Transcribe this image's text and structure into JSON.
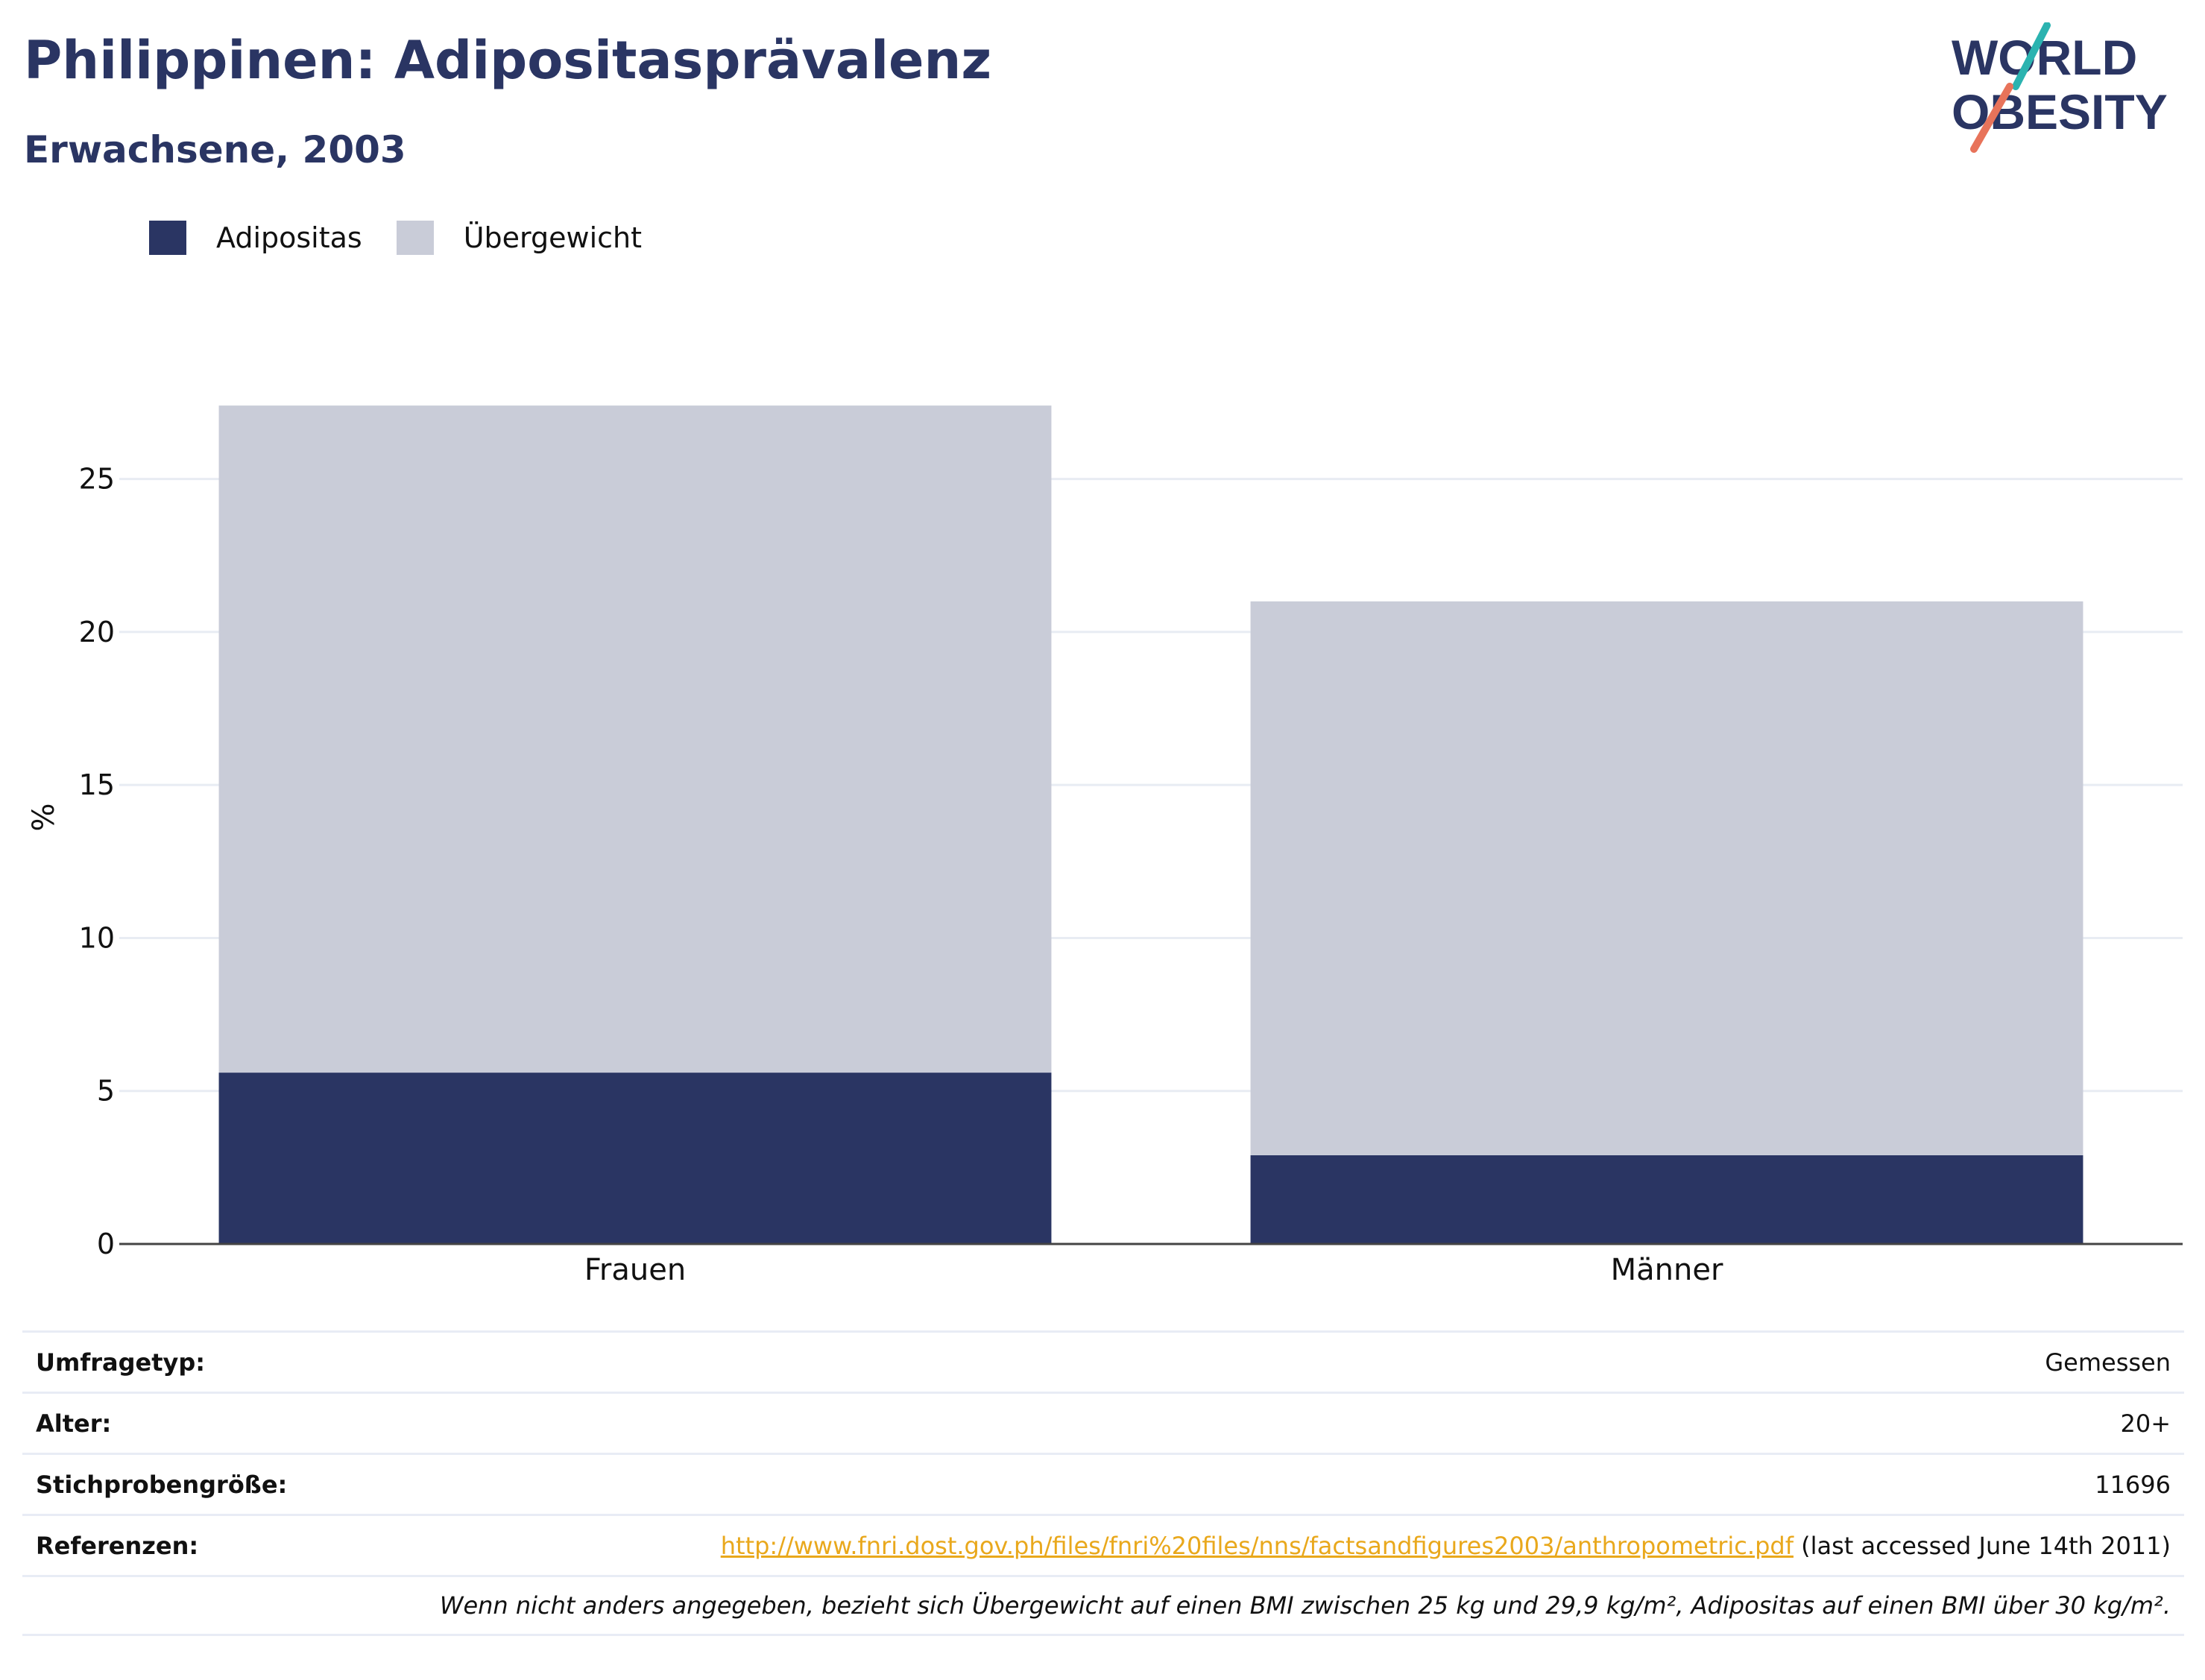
{
  "title": "Philippinen: Adipositasprävalenz",
  "subtitle": "Erwachsene, 2003",
  "logo": {
    "line1": "WORLD",
    "line2": "OBESITY"
  },
  "colors": {
    "obesity": "#2a3563",
    "overweight": "#c9ccd8",
    "title": "#2a3563",
    "link": "#e9a81c",
    "logo_teal": "#2bb3b0",
    "logo_coral": "#e8735a"
  },
  "chart_data": {
    "type": "bar",
    "stacked": true,
    "categories": [
      "Frauen",
      "Männer"
    ],
    "series": [
      {
        "name": "Adipositas",
        "values": [
          5.6,
          2.9
        ]
      },
      {
        "name": "Übergewicht",
        "values": [
          21.8,
          18.1
        ]
      }
    ],
    "ylabel": "%",
    "ylim": [
      0,
      27.5
    ],
    "yticks": [
      0,
      5,
      10,
      15,
      20,
      25
    ],
    "grid": true,
    "legend": "top-left"
  },
  "info": {
    "survey_type": {
      "label": "Umfragetyp:",
      "value": "Gemessen"
    },
    "age": {
      "label": "Alter:",
      "value": "20+"
    },
    "sample_size": {
      "label": "Stichprobengröße:",
      "value": "11696"
    },
    "references": {
      "label": "Referenzen:",
      "link": "http://www.fnri.dost.gov.ph/files/fnri%20files/nns/factsandfigures2003/anthropometric.pdf",
      "note": " (last accessed June 14th 2011)"
    },
    "footnote": "Wenn nicht anders angegeben, bezieht sich Übergewicht auf einen BMI zwischen 25 kg und 29,9 kg/m², Adipositas auf einen BMI über 30 kg/m²."
  }
}
